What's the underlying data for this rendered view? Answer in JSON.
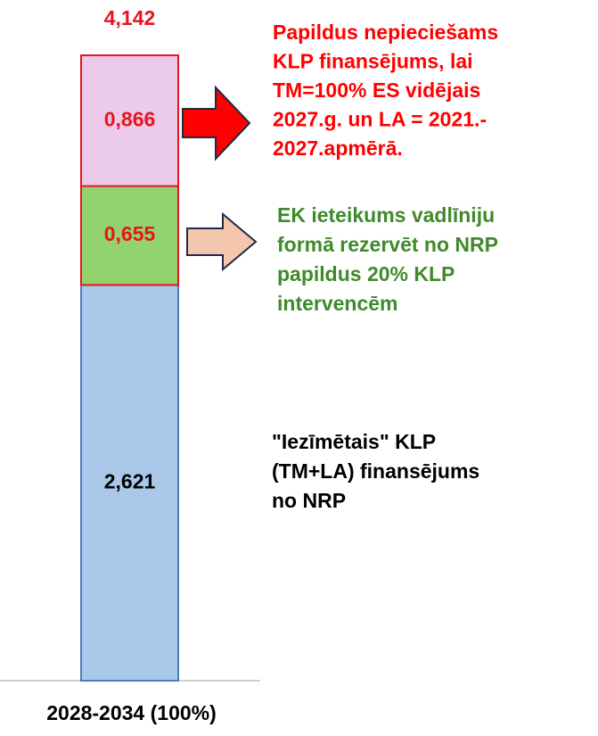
{
  "chart_data": {
    "type": "stacked_bar",
    "categories": [
      "2028-2034 (100%)"
    ],
    "series": [
      {
        "color": "#a9c8ea",
        "edgecolor": "#4a7ebb",
        "label_color": "#000000",
        "values": [
          2.621
        ],
        "value_labels": [
          "2,621"
        ]
      },
      {
        "color": "#92d36e",
        "edgecolor": "#e8141b",
        "label_color": "#e8141b",
        "values": [
          0.655
        ],
        "value_labels": [
          "0,655"
        ]
      },
      {
        "color": "#eccbea",
        "edgecolor": "#e8141b",
        "label_color": "#e8141b",
        "values": [
          0.866
        ],
        "value_labels": [
          "0,866"
        ]
      }
    ],
    "total": 4.142,
    "total_label": "4,142",
    "total_color": "#e8141b",
    "ylim": [
      0,
      4.142
    ],
    "annotations": [
      {
        "color": "#ff0000",
        "lines": [
          "Papildus nepieciešams",
          "KLP finansējums, lai",
          "TM=100% ES vidējais",
          "2027.g. un LA = 2021.-",
          "2027.apmērā."
        ]
      },
      {
        "color": "#3f8a2b",
        "lines": [
          "EK ieteikums vadlīniju",
          "formā rezervēt no NRP",
          "papildus 20% KLP",
          "intervencēm"
        ]
      },
      {
        "color": "#000000",
        "lines": [
          "\"Iezīmētais\" KLP",
          "(TM+LA) finansējums",
          "no NRP"
        ]
      }
    ]
  }
}
